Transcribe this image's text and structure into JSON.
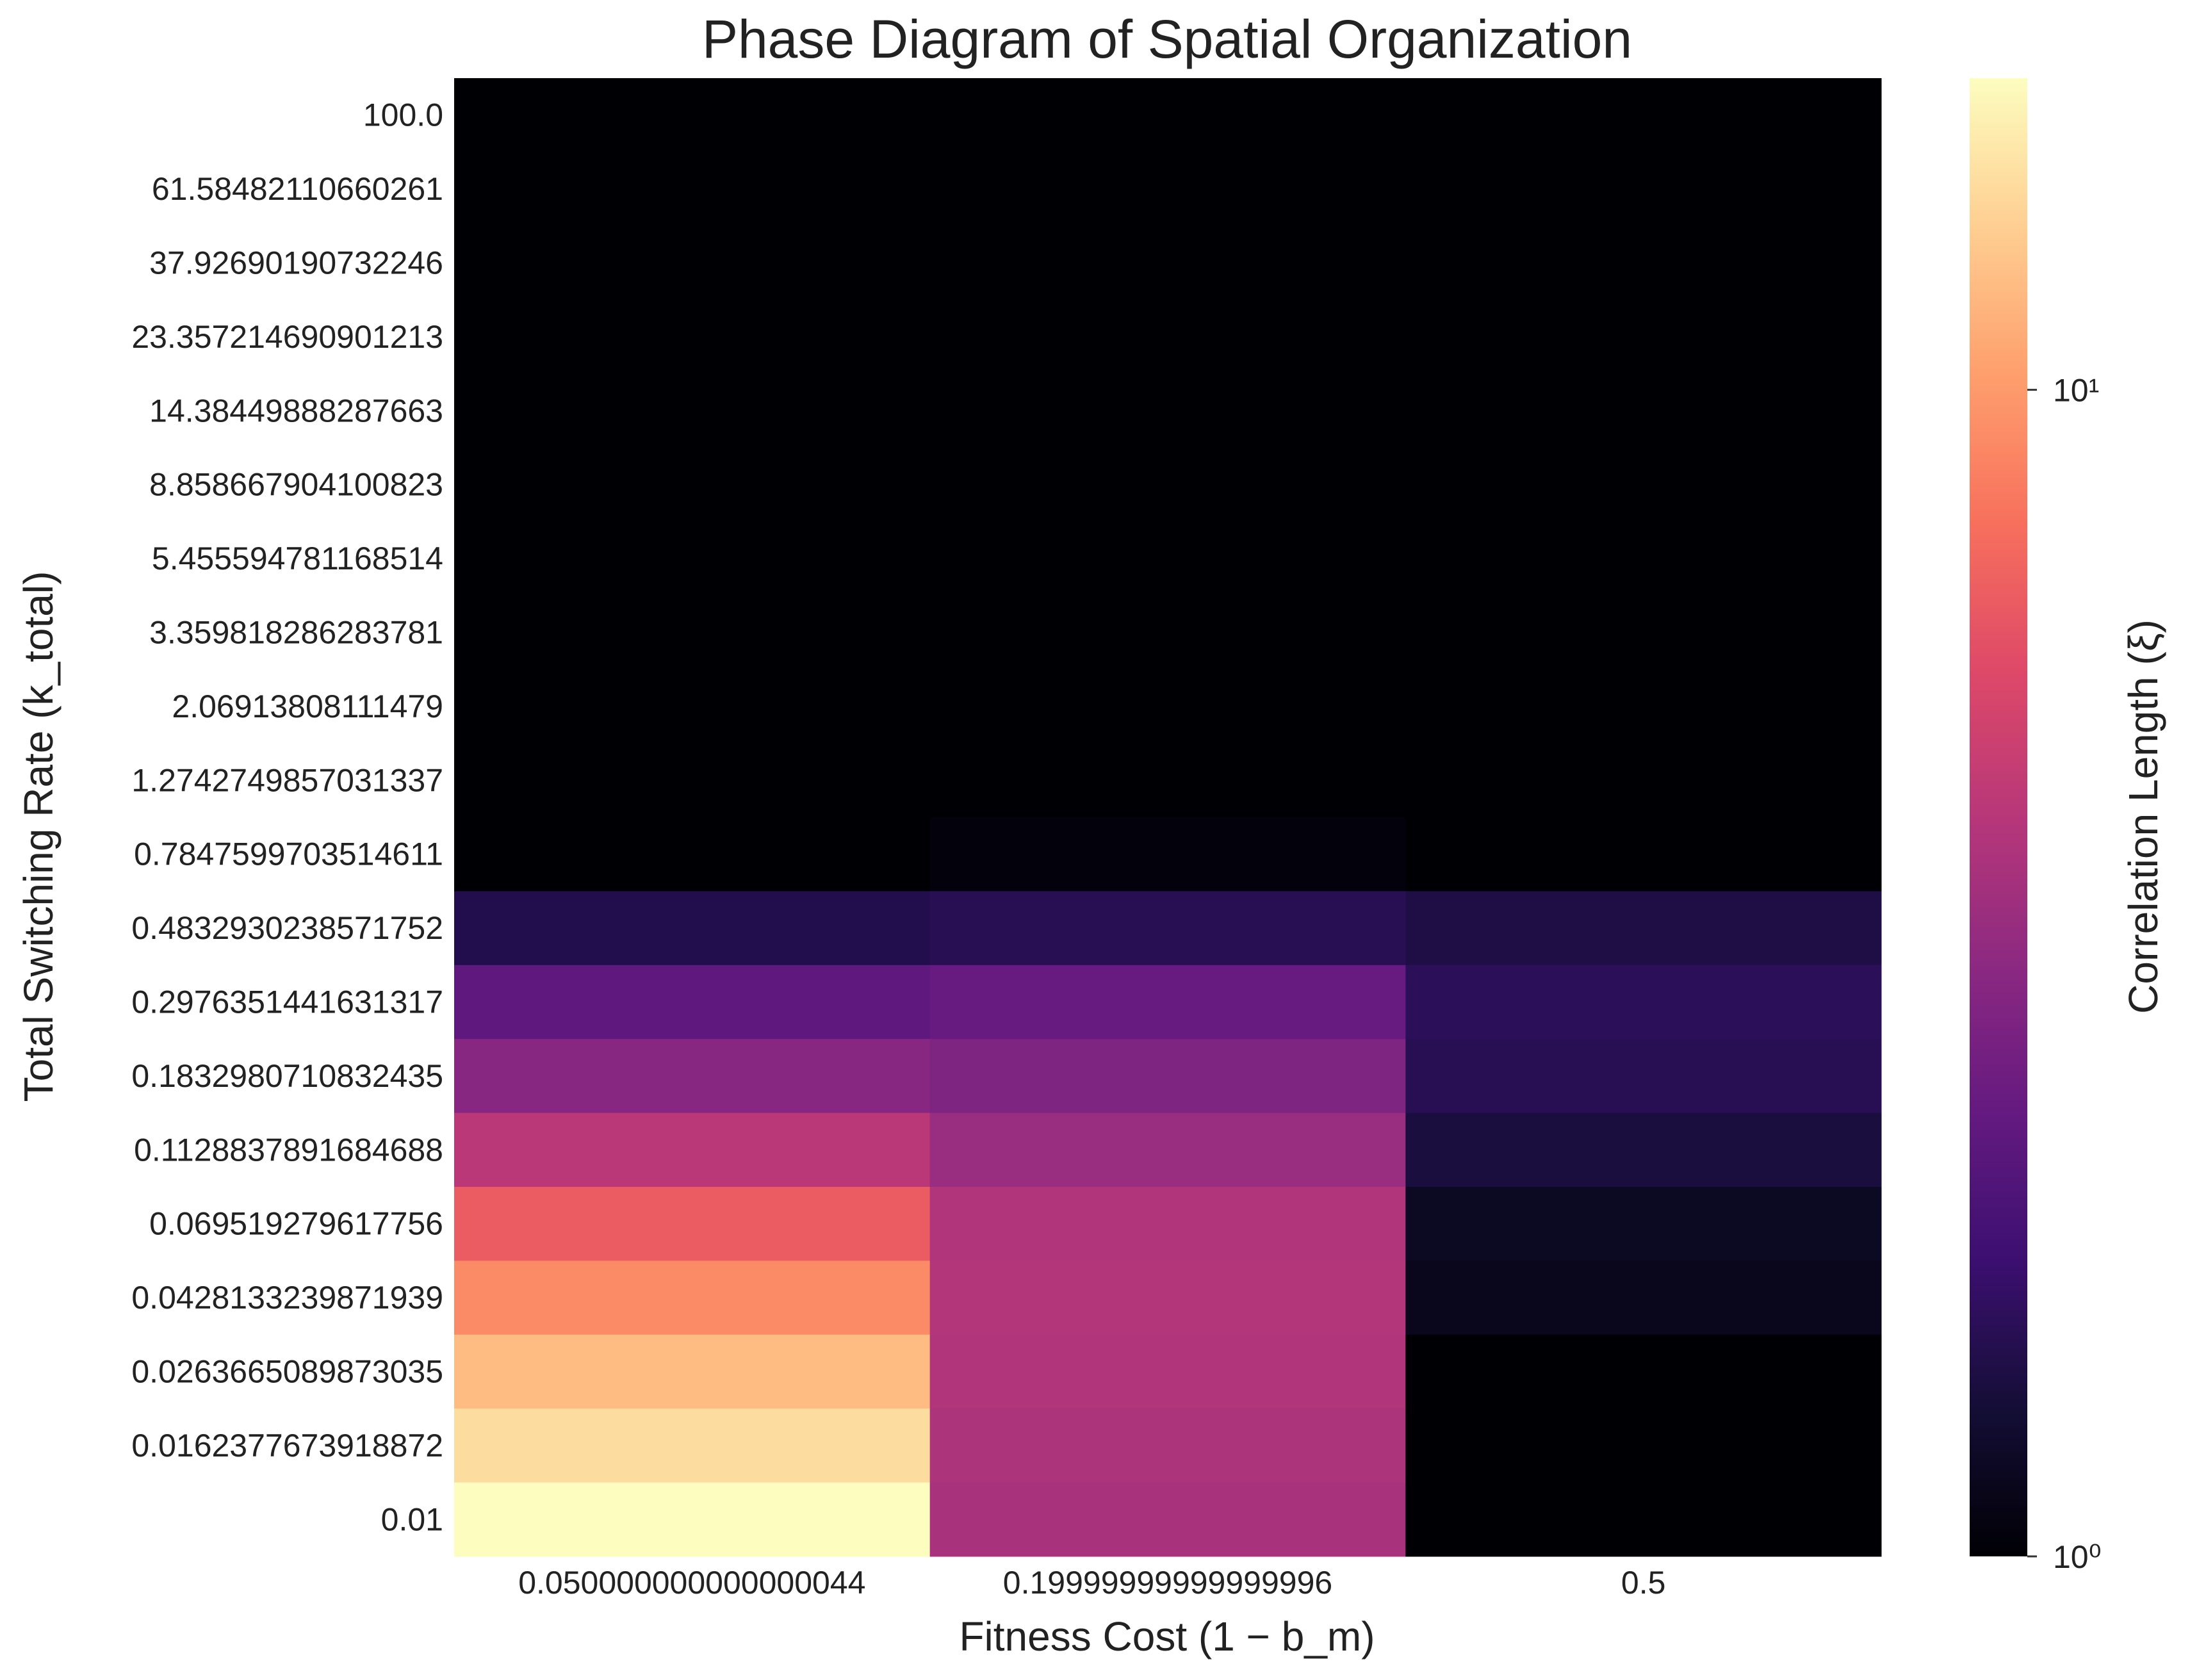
{
  "chart_data": {
    "type": "heatmap",
    "title": "Phase Diagram of Spatial Organization",
    "xlabel": "Fitness Cost (1 − b_m)",
    "ylabel": "Total Switching Rate (k_total)",
    "x_categories": [
      "0.050000000000000044",
      "0.19999999999999996",
      "0.5"
    ],
    "y_categories": [
      "100.0",
      "61.58482110660261",
      "37.92690190732246",
      "23.357214690901213",
      "14.38449888287663",
      "8.858667904100823",
      "5.455594781168514",
      "3.359818286283781",
      "2.06913808111479",
      "1.2742749857031337",
      "0.7847599703514611",
      "0.4832930238571752",
      "0.2976351441631317",
      "0.1832980710832435",
      "0.1128837891684688",
      "0.069519279617756",
      "0.0428133239871939",
      "0.0263665089873035",
      "0.0162377673918872",
      "0.01"
    ],
    "values": [
      [
        1.0,
        1.0,
        1.0
      ],
      [
        1.0,
        1.0,
        1.0
      ],
      [
        1.0,
        1.0,
        1.0
      ],
      [
        1.0,
        1.0,
        1.0
      ],
      [
        1.0,
        1.0,
        1.0
      ],
      [
        1.0,
        1.0,
        1.0
      ],
      [
        1.0,
        1.0,
        1.0
      ],
      [
        1.0,
        1.0,
        1.0
      ],
      [
        1.0,
        1.0,
        1.0
      ],
      [
        1.0,
        1.0,
        1.0
      ],
      [
        1.0,
        1.05,
        1.0
      ],
      [
        1.5,
        1.55,
        1.45
      ],
      [
        2.3,
        2.45,
        1.6
      ],
      [
        3.1,
        2.9,
        1.55
      ],
      [
        4.4,
        3.5,
        1.4
      ],
      [
        6.6,
        4.1,
        1.2
      ],
      [
        9.1,
        4.2,
        1.15
      ],
      [
        12.2,
        4.1,
        1.0
      ],
      [
        15.0,
        4.0,
        1.0
      ],
      [
        18.5,
        3.9,
        1.0
      ]
    ],
    "colorbar": {
      "label": "Correlation Length (ξ)",
      "scale": "log",
      "colormap": "magma",
      "vmin": 1.0,
      "vmax": 18.5,
      "ticks": [
        {
          "value": 1,
          "label": "10⁰"
        },
        {
          "value": 10,
          "label": "10¹"
        }
      ]
    }
  }
}
